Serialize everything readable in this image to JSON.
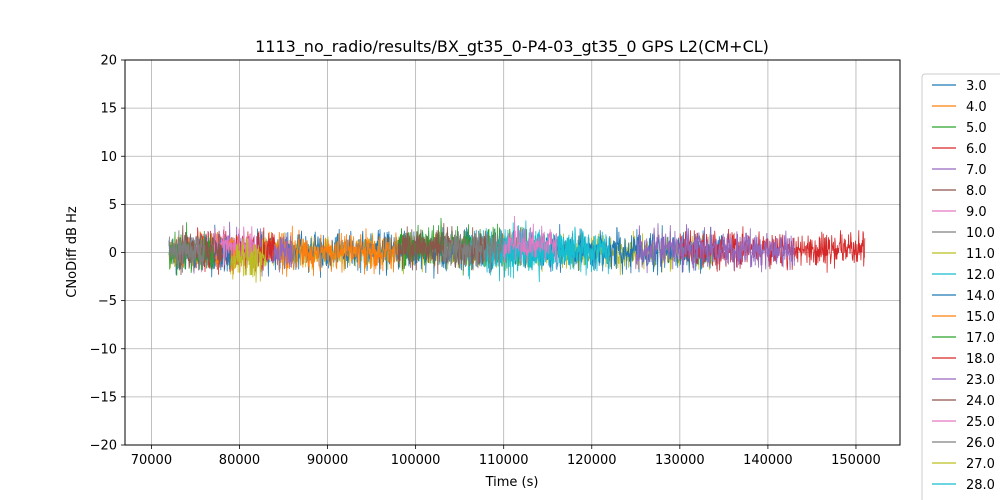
{
  "chart_data": {
    "type": "line",
    "title": "1113_no_radio/results/BX_gt35_0-P4-03_gt35_0 GPS L2(CM+CL)",
    "xlabel": "Time (s)",
    "ylabel": "CNoDiff dB Hz",
    "xlim": [
      67000,
      155000
    ],
    "ylim": [
      -20,
      20
    ],
    "x_ticks": [
      70000,
      80000,
      90000,
      100000,
      110000,
      120000,
      130000,
      140000,
      150000
    ],
    "y_ticks": [
      -20,
      -15,
      -10,
      -5,
      0,
      5,
      10,
      15,
      20
    ],
    "grid": true,
    "legend_position": "right, outside plot area (clipped at bottom)",
    "series": [
      {
        "name": "3.0",
        "color": "#1f77b4",
        "x_range": [
          72000,
          79000
        ],
        "mean": 0.0,
        "spread": 1.0
      },
      {
        "name": "4.0",
        "color": "#ff7f0e",
        "x_range": [
          72500,
          80000
        ],
        "mean": 0.2,
        "spread": 1.0
      },
      {
        "name": "5.0",
        "color": "#2ca02c",
        "x_range": [
          72000,
          77000
        ],
        "mean": 0.1,
        "spread": 1.1
      },
      {
        "name": "6.0",
        "color": "#d62728",
        "x_range": [
          75000,
          84000
        ],
        "mean": 0.3,
        "spread": 1.1
      },
      {
        "name": "7.0",
        "color": "#9467bd",
        "x_range": [
          74000,
          86000
        ],
        "mean": 0.2,
        "spread": 1.0
      },
      {
        "name": "8.0",
        "color": "#8c564b",
        "x_range": [
          73000,
          78000
        ],
        "mean": 0.3,
        "spread": 1.0
      },
      {
        "name": "9.0",
        "color": "#e377c2",
        "x_range": [
          75000,
          82000
        ],
        "mean": 0.5,
        "spread": 1.0
      },
      {
        "name": "10.0",
        "color": "#7f7f7f",
        "x_range": [
          72000,
          76000
        ],
        "mean": 0.2,
        "spread": 0.9
      },
      {
        "name": "11.0",
        "color": "#bcbd22",
        "x_range": [
          79000,
          83000
        ],
        "mean": -0.6,
        "spread": 1.0
      },
      {
        "name": "12.0",
        "color": "#17becf",
        "x_range": [
          106000,
          118000
        ],
        "mean": 0.2,
        "spread": 1.1
      },
      {
        "name": "14.0",
        "color": "#1f77b4",
        "x_range": [
          82000,
          135000
        ],
        "mean": 0.2,
        "spread": 1.0
      },
      {
        "name": "15.0",
        "color": "#ff7f0e",
        "x_range": [
          83000,
          98000
        ],
        "mean": 0.1,
        "spread": 1.0
      },
      {
        "name": "17.0",
        "color": "#2ca02c",
        "x_range": [
          98000,
          113000
        ],
        "mean": 0.6,
        "spread": 1.1
      },
      {
        "name": "18.0",
        "color": "#d62728",
        "x_range": [
          130000,
          151000
        ],
        "mean": 0.3,
        "spread": 0.9
      },
      {
        "name": "23.0",
        "color": "#9467bd",
        "x_range": [
          125000,
          143000
        ],
        "mean": 0.3,
        "spread": 1.0
      },
      {
        "name": "24.0",
        "color": "#8c564b",
        "x_range": [
          98000,
          108000
        ],
        "mean": 0.4,
        "spread": 1.0
      },
      {
        "name": "25.0",
        "color": "#e377c2",
        "x_range": [
          110000,
          116000
        ],
        "mean": 0.9,
        "spread": 1.0
      },
      {
        "name": "26.0",
        "color": "#7f7f7f",
        "x_range": [
          103000,
          110000
        ],
        "mean": 0.4,
        "spread": 1.0
      },
      {
        "name": "27.0",
        "color": "#bcbd22",
        "x_range": [
          72000,
          134000
        ],
        "mean": 0.0,
        "spread": 0.8
      },
      {
        "name": "28.0",
        "color": "#17becf",
        "x_range": [
          108000,
          122000
        ],
        "mean": 0.2,
        "spread": 1.1
      }
    ]
  }
}
